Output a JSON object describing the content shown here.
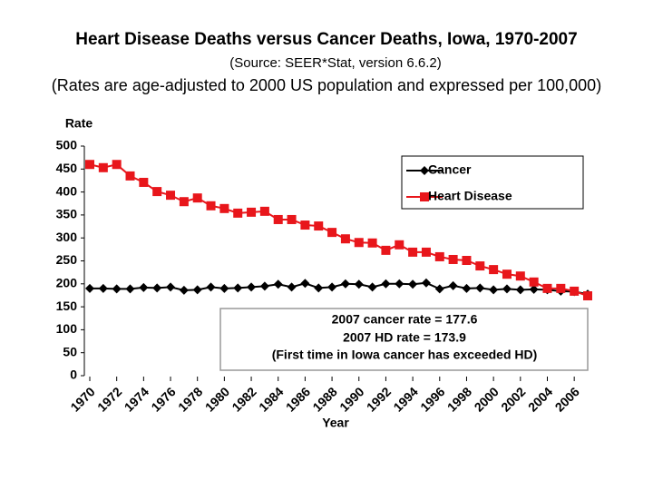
{
  "chart_data": {
    "type": "line",
    "title": "Heart Disease Deaths versus Cancer Deaths, Iowa, 1970-2007",
    "source": "(Source:  SEER*Stat, version 6.6.2)",
    "subtitle": "(Rates are age-adjusted to 2000 US population and expressed per 100,000)",
    "y_label": "Rate",
    "x_label": "Year",
    "x": [
      1970,
      1971,
      1972,
      1973,
      1974,
      1975,
      1976,
      1977,
      1978,
      1979,
      1980,
      1981,
      1982,
      1983,
      1984,
      1985,
      1986,
      1987,
      1988,
      1989,
      1990,
      1991,
      1992,
      1993,
      1994,
      1995,
      1996,
      1997,
      1998,
      1999,
      2000,
      2001,
      2002,
      2003,
      2004,
      2005,
      2006,
      2007
    ],
    "series": [
      {
        "name": "Cancer",
        "color": "#000000",
        "marker": "diamond",
        "values": [
          190,
          190,
          189,
          189,
          192,
          191,
          193,
          186,
          187,
          193,
          190,
          191,
          193,
          195,
          199,
          193,
          201,
          191,
          193,
          200,
          199,
          193,
          200,
          200,
          199,
          202,
          189,
          196,
          190,
          191,
          187,
          189,
          187,
          188,
          187,
          184,
          183,
          177.6
        ]
      },
      {
        "name": "Heart Disease",
        "color": "#e8161b",
        "marker": "square",
        "values": [
          460,
          453,
          460,
          435,
          421,
          401,
          393,
          379,
          387,
          370,
          364,
          354,
          356,
          358,
          340,
          340,
          328,
          326,
          312,
          298,
          290,
          289,
          273,
          285,
          269,
          269,
          259,
          253,
          251,
          239,
          231,
          221,
          217,
          204,
          190,
          190,
          184,
          173.9
        ]
      }
    ],
    "xlim": [
      1970,
      2007
    ],
    "xticks": [
      1970,
      1972,
      1974,
      1976,
      1978,
      1980,
      1982,
      1984,
      1986,
      1988,
      1990,
      1992,
      1994,
      1996,
      1998,
      2000,
      2002,
      2004,
      2006
    ],
    "ylim": [
      0,
      500
    ],
    "yticks": [
      0,
      50,
      100,
      150,
      200,
      250,
      300,
      350,
      400,
      450,
      500
    ],
    "annotation": [
      "2007 cancer rate = 177.6",
      "2007 HD rate = 173.9",
      "(First time in Iowa cancer has exceeded HD)"
    ]
  }
}
